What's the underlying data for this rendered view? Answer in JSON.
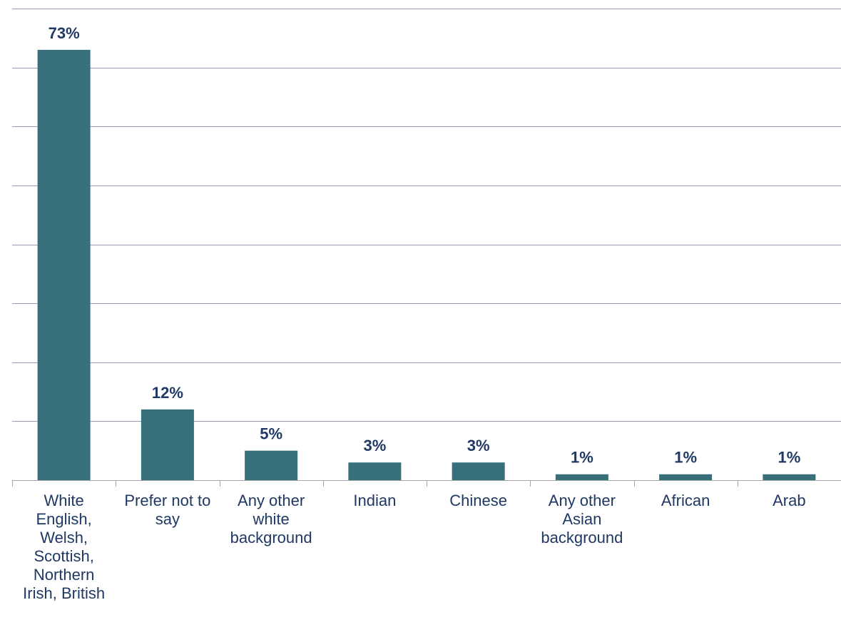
{
  "chart_data": {
    "type": "bar",
    "categories": [
      "White English, Welsh, Scottish, Northern Irish, British",
      "Prefer not to say",
      "Any other white background",
      "Indian",
      "Chinese",
      "Any other Asian background",
      "African",
      "Arab"
    ],
    "values": [
      73,
      12,
      5,
      3,
      3,
      1,
      1,
      1
    ],
    "data_labels": [
      "73%",
      "12%",
      "5%",
      "3%",
      "3%",
      "1%",
      "1%",
      "1%"
    ],
    "category_label_lines": [
      [
        "White",
        "English,",
        "Welsh,",
        "Scottish,",
        "Northern",
        "Irish, British"
      ],
      [
        "Prefer not to",
        "say"
      ],
      [
        "Any other",
        "white",
        "background"
      ],
      [
        "Indian"
      ],
      [
        "Chinese"
      ],
      [
        "Any other",
        "Asian",
        "background"
      ],
      [
        "African"
      ],
      [
        "Arab"
      ]
    ],
    "ylim": [
      0,
      80
    ],
    "y_gridline_step": 10,
    "grid": true,
    "legend": "none",
    "y_axis_tick_labels": false,
    "colors": {
      "bar": "#376f7a",
      "gridline": "#9a9ac0",
      "axis": "#a6a6a6",
      "label_text": "#1f3864"
    }
  }
}
